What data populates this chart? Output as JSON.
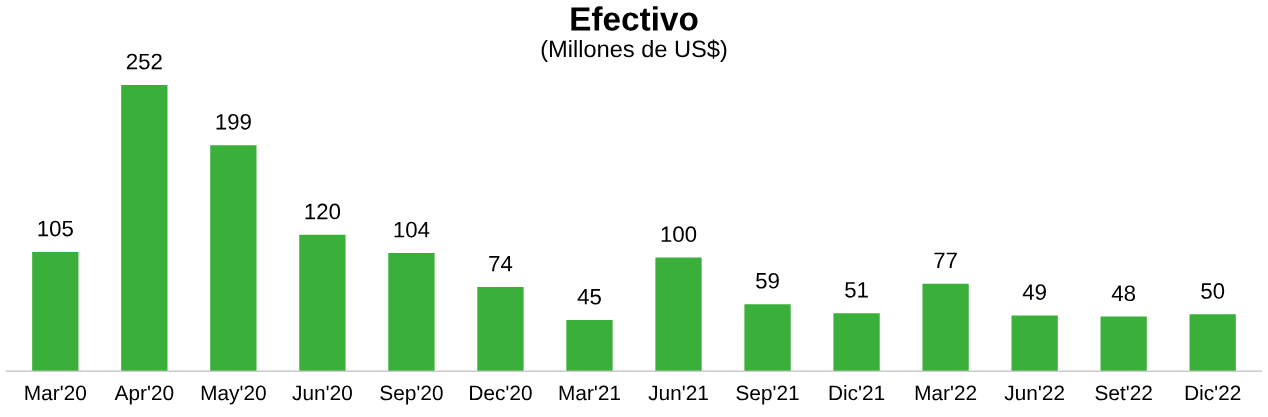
{
  "chart_data": {
    "type": "bar",
    "title": "Efectivo",
    "subtitle": "(Millones de US$)",
    "categories": [
      "Mar'20",
      "Apr'20",
      "May'20",
      "Jun'20",
      "Sep'20",
      "Dec'20",
      "Mar'21",
      "Jun'21",
      "Sep'21",
      "Dic'21",
      "Mar'22",
      "Jun'22",
      "Set'22",
      "Dic'22"
    ],
    "values": [
      105,
      252,
      199,
      120,
      104,
      74,
      45,
      100,
      59,
      51,
      77,
      49,
      48,
      50
    ],
    "color": "#3aaf3a",
    "data_labels": true,
    "grid": false,
    "legend": false
  }
}
